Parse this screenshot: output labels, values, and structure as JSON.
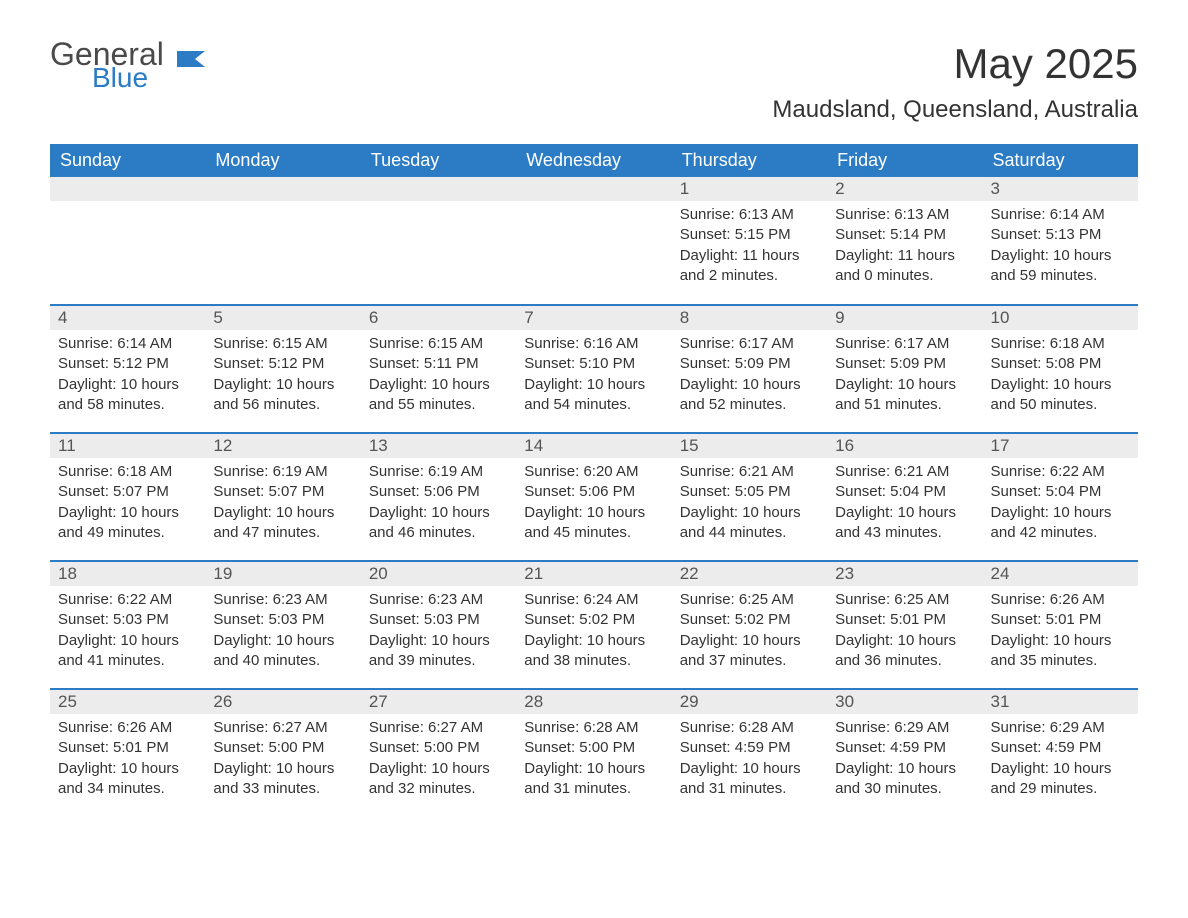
{
  "logo": {
    "text1": "General",
    "text2": "Blue",
    "icon_color": "#2b7cc4"
  },
  "title": "May 2025",
  "location": "Maudsland, Queensland, Australia",
  "colors": {
    "header_bg": "#2b7cc4",
    "header_text": "#ffffff",
    "daynum_bg": "#ececec",
    "row_border": "#2b7cc4",
    "body_text": "#333333"
  },
  "days_of_week": [
    "Sunday",
    "Monday",
    "Tuesday",
    "Wednesday",
    "Thursday",
    "Friday",
    "Saturday"
  ],
  "weeks": [
    [
      null,
      null,
      null,
      null,
      {
        "n": "1",
        "sunrise": "Sunrise: 6:13 AM",
        "sunset": "Sunset: 5:15 PM",
        "daylight": "Daylight: 11 hours and 2 minutes."
      },
      {
        "n": "2",
        "sunrise": "Sunrise: 6:13 AM",
        "sunset": "Sunset: 5:14 PM",
        "daylight": "Daylight: 11 hours and 0 minutes."
      },
      {
        "n": "3",
        "sunrise": "Sunrise: 6:14 AM",
        "sunset": "Sunset: 5:13 PM",
        "daylight": "Daylight: 10 hours and 59 minutes."
      }
    ],
    [
      {
        "n": "4",
        "sunrise": "Sunrise: 6:14 AM",
        "sunset": "Sunset: 5:12 PM",
        "daylight": "Daylight: 10 hours and 58 minutes."
      },
      {
        "n": "5",
        "sunrise": "Sunrise: 6:15 AM",
        "sunset": "Sunset: 5:12 PM",
        "daylight": "Daylight: 10 hours and 56 minutes."
      },
      {
        "n": "6",
        "sunrise": "Sunrise: 6:15 AM",
        "sunset": "Sunset: 5:11 PM",
        "daylight": "Daylight: 10 hours and 55 minutes."
      },
      {
        "n": "7",
        "sunrise": "Sunrise: 6:16 AM",
        "sunset": "Sunset: 5:10 PM",
        "daylight": "Daylight: 10 hours and 54 minutes."
      },
      {
        "n": "8",
        "sunrise": "Sunrise: 6:17 AM",
        "sunset": "Sunset: 5:09 PM",
        "daylight": "Daylight: 10 hours and 52 minutes."
      },
      {
        "n": "9",
        "sunrise": "Sunrise: 6:17 AM",
        "sunset": "Sunset: 5:09 PM",
        "daylight": "Daylight: 10 hours and 51 minutes."
      },
      {
        "n": "10",
        "sunrise": "Sunrise: 6:18 AM",
        "sunset": "Sunset: 5:08 PM",
        "daylight": "Daylight: 10 hours and 50 minutes."
      }
    ],
    [
      {
        "n": "11",
        "sunrise": "Sunrise: 6:18 AM",
        "sunset": "Sunset: 5:07 PM",
        "daylight": "Daylight: 10 hours and 49 minutes."
      },
      {
        "n": "12",
        "sunrise": "Sunrise: 6:19 AM",
        "sunset": "Sunset: 5:07 PM",
        "daylight": "Daylight: 10 hours and 47 minutes."
      },
      {
        "n": "13",
        "sunrise": "Sunrise: 6:19 AM",
        "sunset": "Sunset: 5:06 PM",
        "daylight": "Daylight: 10 hours and 46 minutes."
      },
      {
        "n": "14",
        "sunrise": "Sunrise: 6:20 AM",
        "sunset": "Sunset: 5:06 PM",
        "daylight": "Daylight: 10 hours and 45 minutes."
      },
      {
        "n": "15",
        "sunrise": "Sunrise: 6:21 AM",
        "sunset": "Sunset: 5:05 PM",
        "daylight": "Daylight: 10 hours and 44 minutes."
      },
      {
        "n": "16",
        "sunrise": "Sunrise: 6:21 AM",
        "sunset": "Sunset: 5:04 PM",
        "daylight": "Daylight: 10 hours and 43 minutes."
      },
      {
        "n": "17",
        "sunrise": "Sunrise: 6:22 AM",
        "sunset": "Sunset: 5:04 PM",
        "daylight": "Daylight: 10 hours and 42 minutes."
      }
    ],
    [
      {
        "n": "18",
        "sunrise": "Sunrise: 6:22 AM",
        "sunset": "Sunset: 5:03 PM",
        "daylight": "Daylight: 10 hours and 41 minutes."
      },
      {
        "n": "19",
        "sunrise": "Sunrise: 6:23 AM",
        "sunset": "Sunset: 5:03 PM",
        "daylight": "Daylight: 10 hours and 40 minutes."
      },
      {
        "n": "20",
        "sunrise": "Sunrise: 6:23 AM",
        "sunset": "Sunset: 5:03 PM",
        "daylight": "Daylight: 10 hours and 39 minutes."
      },
      {
        "n": "21",
        "sunrise": "Sunrise: 6:24 AM",
        "sunset": "Sunset: 5:02 PM",
        "daylight": "Daylight: 10 hours and 38 minutes."
      },
      {
        "n": "22",
        "sunrise": "Sunrise: 6:25 AM",
        "sunset": "Sunset: 5:02 PM",
        "daylight": "Daylight: 10 hours and 37 minutes."
      },
      {
        "n": "23",
        "sunrise": "Sunrise: 6:25 AM",
        "sunset": "Sunset: 5:01 PM",
        "daylight": "Daylight: 10 hours and 36 minutes."
      },
      {
        "n": "24",
        "sunrise": "Sunrise: 6:26 AM",
        "sunset": "Sunset: 5:01 PM",
        "daylight": "Daylight: 10 hours and 35 minutes."
      }
    ],
    [
      {
        "n": "25",
        "sunrise": "Sunrise: 6:26 AM",
        "sunset": "Sunset: 5:01 PM",
        "daylight": "Daylight: 10 hours and 34 minutes."
      },
      {
        "n": "26",
        "sunrise": "Sunrise: 6:27 AM",
        "sunset": "Sunset: 5:00 PM",
        "daylight": "Daylight: 10 hours and 33 minutes."
      },
      {
        "n": "27",
        "sunrise": "Sunrise: 6:27 AM",
        "sunset": "Sunset: 5:00 PM",
        "daylight": "Daylight: 10 hours and 32 minutes."
      },
      {
        "n": "28",
        "sunrise": "Sunrise: 6:28 AM",
        "sunset": "Sunset: 5:00 PM",
        "daylight": "Daylight: 10 hours and 31 minutes."
      },
      {
        "n": "29",
        "sunrise": "Sunrise: 6:28 AM",
        "sunset": "Sunset: 4:59 PM",
        "daylight": "Daylight: 10 hours and 31 minutes."
      },
      {
        "n": "30",
        "sunrise": "Sunrise: 6:29 AM",
        "sunset": "Sunset: 4:59 PM",
        "daylight": "Daylight: 10 hours and 30 minutes."
      },
      {
        "n": "31",
        "sunrise": "Sunrise: 6:29 AM",
        "sunset": "Sunset: 4:59 PM",
        "daylight": "Daylight: 10 hours and 29 minutes."
      }
    ]
  ]
}
